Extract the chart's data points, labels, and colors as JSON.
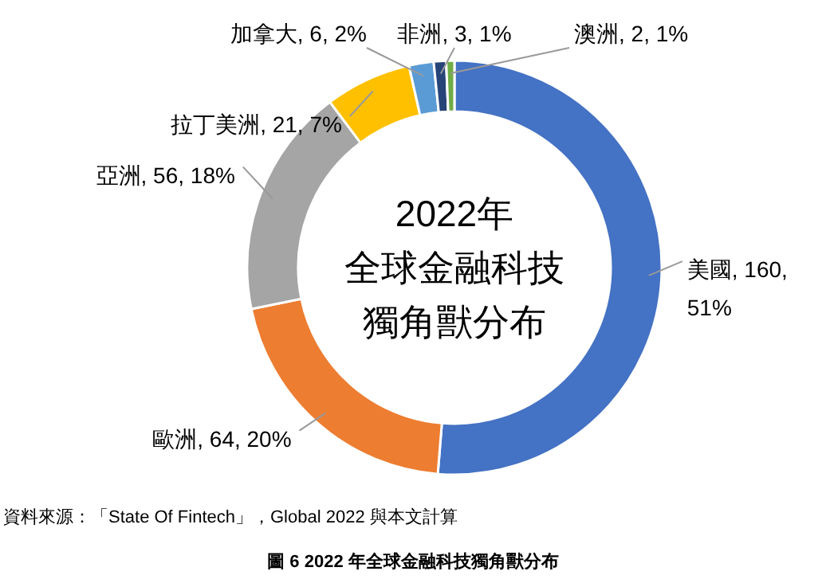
{
  "chart_data": {
    "type": "donut",
    "title": "2022年",
    "subtitle": "全球金融科技獨角獸分布",
    "annotations": [
      "資料來源：「State Of Fintech」，Global 2022 與本文計算",
      "圖 6  2022 年全球金融科技獨角獸分布"
    ],
    "categories": [
      "美國",
      "歐洲",
      "亞洲",
      "拉丁美洲",
      "加拿大",
      "非洲",
      "澳洲"
    ],
    "values": [
      160,
      64,
      56,
      21,
      6,
      3,
      2
    ],
    "value_labels": [
      "160, 51%",
      "64, 20%",
      "56, 18%",
      "21, 7%",
      "6, 2%",
      "3, 1%",
      "2, 1%"
    ],
    "colors": [
      "#4472c4",
      "#ed7d31",
      "#a5a5a5",
      "#ffc000",
      "#5b9bd5",
      "#264478",
      "#70ad47"
    ]
  }
}
